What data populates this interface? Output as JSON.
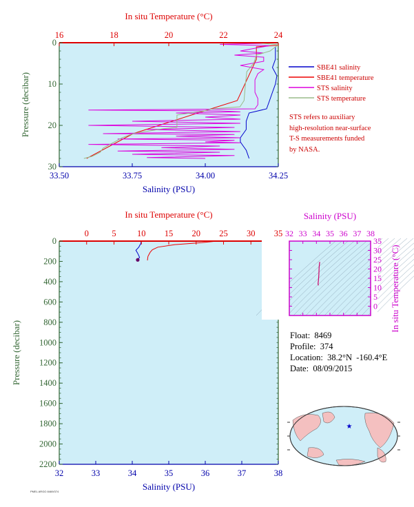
{
  "colors": {
    "plot_bg": "#cfeef8",
    "salinity": "#0000cc",
    "temperature": "#ee0000",
    "sts_salinity": "#dd00dd",
    "sts_temperature": "#99bb88",
    "axis_red": "#dd0000",
    "axis_blue": "#0000aa",
    "axis_green": "#336633",
    "axis_magenta": "#cc00cc",
    "map_land": "#f4c0c0",
    "map_ocean": "#cfeef8"
  },
  "info": {
    "float": "Float:  8469",
    "profile": "Profile:  374",
    "location": "Location:  38.2°N  -160.4°E",
    "date": "Date:  08/09/2015"
  },
  "legend": [
    {
      "label": "SBE41 salinity",
      "color": "#0000cc"
    },
    {
      "label": "SBE41 temperature",
      "color": "#ee0000"
    },
    {
      "label": "STS salinity",
      "color": "#dd00dd"
    },
    {
      "label": "STS temperature",
      "color": "#99bb88"
    }
  ],
  "note_lines": [
    "STS refers to auxiliary",
    "high-resolution near-surface",
    "T-S measurements funded",
    "by NASA."
  ],
  "credit": "PMEL ARGO 8469/374",
  "chart_data": [
    {
      "type": "line",
      "name": "top",
      "xlabel_bottom": "Salinity (PSU)",
      "xlabel_top": "In situ Temperature (°C)",
      "ylabel": "Pressure (decibar)",
      "salinity_lim": [
        33.5,
        34.25
      ],
      "salinity_ticks": [
        "33.50",
        "33.75",
        "34.00",
        "34.25"
      ],
      "temperature_lim": [
        16,
        24
      ],
      "temperature_ticks": [
        "16",
        "18",
        "20",
        "22",
        "24"
      ],
      "ylim": [
        0,
        30
      ],
      "y_ticks": [
        "0",
        "10",
        "20",
        "30"
      ],
      "series": [
        {
          "name": "SBE41 salinity",
          "key": "salinity",
          "quantity": "salinity",
          "points": [
            [
              34.24,
              1
            ],
            [
              34.24,
              4
            ],
            [
              34.23,
              6
            ],
            [
              34.245,
              8
            ],
            [
              34.24,
              10
            ],
            [
              34.23,
              12
            ],
            [
              34.22,
              14
            ],
            [
              34.21,
              16
            ],
            [
              34.15,
              17
            ],
            [
              34.14,
              19
            ],
            [
              34.14,
              21
            ],
            [
              34.12,
              23
            ],
            [
              34.12,
              24
            ],
            [
              34.13,
              25
            ],
            [
              34.14,
              26
            ],
            [
              34.15,
              28
            ]
          ]
        },
        {
          "name": "SBE41 temperature",
          "key": "temperature",
          "quantity": "temperature",
          "points": [
            [
              24,
              0.6
            ],
            [
              23.2,
              1
            ],
            [
              23.2,
              4
            ],
            [
              22.5,
              14
            ],
            [
              21.3,
              16.5
            ],
            [
              18.7,
              22
            ],
            [
              17,
              28
            ]
          ]
        },
        {
          "name": "STS salinity",
          "key": "sts_salinity",
          "quantity": "salinity",
          "points": [
            [
              34.14,
              0
            ],
            [
              34.22,
              0.1
            ],
            [
              34.05,
              0.4
            ],
            [
              34.22,
              0.7
            ],
            [
              34.12,
              2
            ],
            [
              34.2,
              2.5
            ],
            [
              34.1,
              3
            ],
            [
              34.2,
              3.5
            ],
            [
              34.2,
              4.5
            ],
            [
              34.12,
              5.5
            ],
            [
              34.2,
              6.5
            ],
            [
              34.18,
              7.5
            ],
            [
              34.17,
              9
            ],
            [
              34.17,
              10.5
            ],
            [
              34.17,
              12
            ],
            [
              34.18,
              13.5
            ],
            [
              34.18,
              15
            ],
            [
              34.17,
              16
            ],
            [
              33.6,
              16.3
            ],
            [
              34.05,
              16.5
            ],
            [
              34.12,
              16.7
            ],
            [
              33.9,
              17
            ],
            [
              34.12,
              17.5
            ],
            [
              34.0,
              18
            ],
            [
              34.12,
              18.5
            ],
            [
              33.75,
              19
            ],
            [
              34.12,
              19.5
            ],
            [
              33.6,
              20
            ],
            [
              34.1,
              20.5
            ],
            [
              33.8,
              21
            ],
            [
              34.12,
              21.5
            ],
            [
              33.65,
              22
            ],
            [
              34.1,
              22.2
            ],
            [
              33.9,
              22.6
            ],
            [
              34.12,
              23
            ],
            [
              33.7,
              23.3
            ],
            [
              34.1,
              23.6
            ],
            [
              34.0,
              24
            ],
            [
              34.12,
              24.2
            ],
            [
              33.6,
              24.6
            ],
            [
              34.05,
              25
            ],
            [
              33.85,
              25.4
            ],
            [
              34.1,
              25.8
            ],
            [
              33.7,
              26.2
            ],
            [
              34.05,
              26.5
            ],
            [
              33.75,
              27
            ],
            [
              34.1,
              27.3
            ],
            [
              33.8,
              27.8
            ],
            [
              34.0,
              28
            ]
          ]
        },
        {
          "name": "STS temperature",
          "key": "sts_temperature",
          "quantity": "temperature",
          "points": [
            [
              23.2,
              0
            ],
            [
              24,
              0.5
            ],
            [
              23.9,
              1
            ],
            [
              23.7,
              2
            ],
            [
              23.2,
              3
            ],
            [
              23.15,
              4
            ],
            [
              23.1,
              5
            ],
            [
              22.85,
              7
            ],
            [
              22.8,
              10
            ],
            [
              22.75,
              14
            ],
            [
              22.6,
              15.5
            ],
            [
              21.6,
              16
            ],
            [
              21.3,
              16.5
            ],
            [
              20.3,
              17.5
            ],
            [
              20.3,
              20.5
            ],
            [
              19.8,
              20.8
            ],
            [
              18.7,
              22
            ],
            [
              18.3,
              23
            ],
            [
              17.6,
              25.5
            ],
            [
              17.5,
              26.5
            ],
            [
              17.2,
              27.5
            ],
            [
              16.9,
              28
            ]
          ]
        }
      ]
    },
    {
      "type": "line",
      "name": "full-profile",
      "xlabel_bottom": "Salinity (PSU)",
      "xlabel_top": "In situ Temperature (°C)",
      "ylabel": "Pressure (decibar)",
      "salinity_lim": [
        32,
        38
      ],
      "salinity_ticks": [
        "32",
        "33",
        "34",
        "35",
        "36",
        "37",
        "38"
      ],
      "temperature_lim": [
        -5,
        35
      ],
      "temperature_ticks": [
        "0",
        "5",
        "10",
        "15",
        "20",
        "25",
        "30",
        "35"
      ],
      "ylim": [
        0,
        2200
      ],
      "y_ticks": [
        "0",
        "200",
        "400",
        "600",
        "800",
        "1000",
        "1200",
        "1400",
        "1600",
        "1800",
        "2000",
        "2200"
      ],
      "series": [
        {
          "name": "SBE41 salinity",
          "key": "salinity",
          "quantity": "salinity",
          "points": [
            [
              34.24,
              0
            ],
            [
              34.24,
              20
            ],
            [
              34.18,
              60
            ],
            [
              34.1,
              90
            ],
            [
              34.15,
              120
            ],
            [
              34.2,
              160
            ],
            [
              34.15,
              185
            ]
          ]
        },
        {
          "name": "SBE41 temperature",
          "key": "temperature",
          "quantity": "temperature",
          "points": [
            [
              23.8,
              0
            ],
            [
              21,
              15
            ],
            [
              16,
              35
            ],
            [
              13,
              60
            ],
            [
              12,
              85
            ],
            [
              11.6,
              110
            ],
            [
              11.2,
              150
            ],
            [
              11.1,
              190
            ]
          ]
        }
      ],
      "marker": {
        "salinity": 34.15,
        "pressure": 185
      }
    },
    {
      "type": "scatter",
      "name": "ts-diagram",
      "xlabel": "Salinity (PSU)",
      "ylabel": "In situ Temperature (°C)",
      "xlim": [
        32,
        38
      ],
      "x_ticks": [
        "32",
        "33",
        "34",
        "35",
        "36",
        "37",
        "38"
      ],
      "ylim": [
        -5,
        35
      ],
      "y_ticks": [
        "0",
        "5",
        "10",
        "15",
        "20",
        "25",
        "30",
        "35"
      ],
      "series": [
        {
          "name": "T-S",
          "points": [
            [
              34.24,
              23.8
            ],
            [
              34.2,
              21
            ],
            [
              34.18,
              17
            ],
            [
              34.15,
              14
            ],
            [
              34.12,
              12
            ],
            [
              34.15,
              11.2
            ]
          ]
        }
      ]
    }
  ]
}
